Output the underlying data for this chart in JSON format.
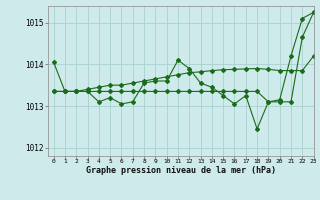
{
  "xlabel": "Graphe pression niveau de la mer (hPa)",
  "background_color": "#ceeaea",
  "grid_color": "#aad0d0",
  "line_color": "#1a6b1a",
  "ylim": [
    1011.8,
    1015.4
  ],
  "xlim": [
    -0.5,
    23
  ],
  "yticks": [
    1012,
    1013,
    1014,
    1015
  ],
  "xticks": [
    0,
    1,
    2,
    3,
    4,
    5,
    6,
    7,
    8,
    9,
    10,
    11,
    12,
    13,
    14,
    15,
    16,
    17,
    18,
    19,
    20,
    21,
    22,
    23
  ],
  "series1": [
    1014.05,
    1013.35,
    1013.35,
    1013.35,
    1013.1,
    1013.2,
    1013.05,
    1013.1,
    1013.55,
    1013.6,
    1013.6,
    1014.1,
    1013.9,
    1013.55,
    1013.45,
    1013.25,
    1013.05,
    1013.25,
    1012.45,
    1013.1,
    1013.15,
    1014.2,
    1015.1,
    1015.25
  ],
  "series2": [
    1013.35,
    1013.35,
    1013.35,
    1013.4,
    1013.45,
    1013.5,
    1013.5,
    1013.55,
    1013.6,
    1013.65,
    1013.7,
    1013.75,
    1013.8,
    1013.82,
    1013.85,
    1013.87,
    1013.88,
    1013.89,
    1013.9,
    1013.88,
    1013.85,
    1013.85,
    1013.85,
    1014.2
  ],
  "series3": [
    1013.35,
    1013.35,
    1013.35,
    1013.35,
    1013.35,
    1013.35,
    1013.35,
    1013.35,
    1013.35,
    1013.35,
    1013.35,
    1013.35,
    1013.35,
    1013.35,
    1013.35,
    1013.35,
    1013.35,
    1013.35,
    1013.35,
    1013.1,
    1013.1,
    1013.1,
    1014.65,
    1015.25
  ]
}
